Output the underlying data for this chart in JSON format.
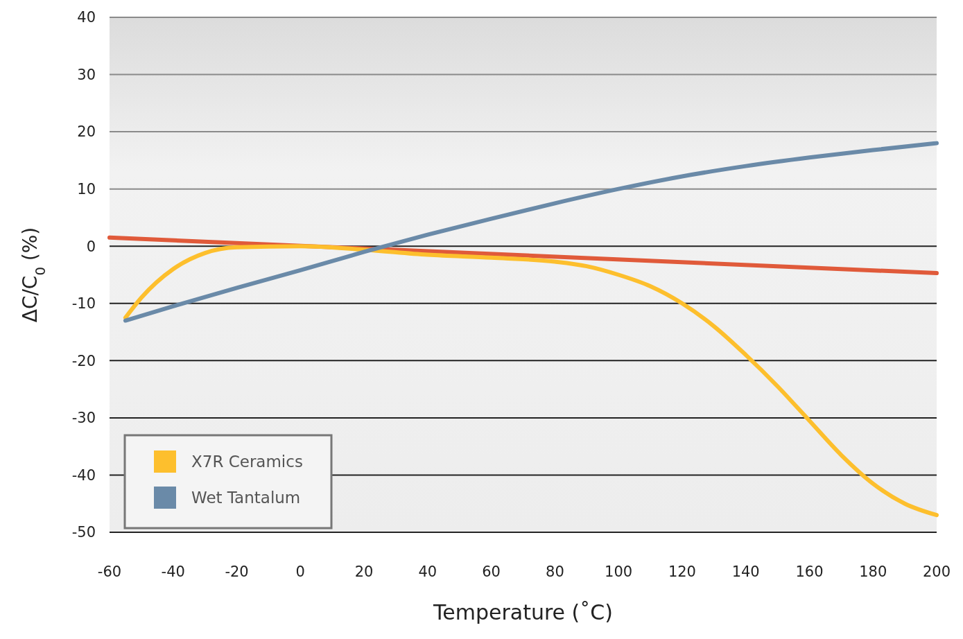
{
  "chart_data": {
    "type": "line",
    "xlabel": "Temperature (˚C)",
    "ylabel": "ΔC/C$_{0}$ (%)",
    "xlim": [
      -60,
      200
    ],
    "xticks": [
      -60,
      -40,
      -20,
      0,
      20,
      40,
      60,
      80,
      100,
      120,
      140,
      160,
      180,
      200
    ],
    "ylim": [
      -50,
      40
    ],
    "yticks": [
      -50,
      -40,
      -30,
      -20,
      -10,
      0,
      10,
      20,
      30,
      40
    ],
    "grid": "y",
    "legend": "bottom left",
    "marker": "none",
    "line_style": "solid",
    "series": [
      {
        "color": "#e05a3a",
        "x": [
          -60,
          200
        ],
        "values": [
          1.5,
          -4.7
        ]
      },
      {
        "name": "X7R Ceramics",
        "color": "#fdbf2d",
        "x": [
          -55,
          -50,
          -40,
          -30,
          -20,
          0,
          20,
          40,
          60,
          80,
          90,
          100,
          110,
          120,
          130,
          140,
          150,
          160,
          170,
          180,
          190,
          200
        ],
        "values": [
          -12.5,
          -9,
          -4,
          -1.2,
          -0.2,
          0,
          -0.6,
          -1.5,
          -2,
          -2.7,
          -3.5,
          -5,
          -7,
          -10,
          -14,
          -19,
          -24.5,
          -30.5,
          -36.5,
          -41.5,
          -45,
          -47
        ]
      },
      {
        "name": "Wet Tantalum",
        "color": "#6a8aa8",
        "x": [
          -55,
          -40,
          -20,
          0,
          20,
          40,
          60,
          80,
          100,
          120,
          140,
          160,
          180,
          200
        ],
        "values": [
          -13,
          -10.5,
          -7.3,
          -4.2,
          -1,
          2,
          4.8,
          7.5,
          10,
          12.2,
          14,
          15.5,
          16.8,
          18
        ]
      }
    ]
  }
}
